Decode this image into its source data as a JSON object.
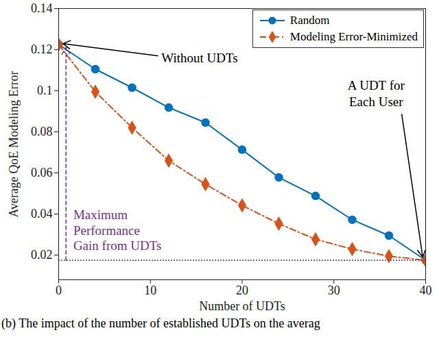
{
  "chart_data": {
    "type": "line",
    "caption": "(b) The impact of the number of established UDTs on the averag",
    "x_label": "Number of UDTs",
    "y_label": "Average QoE Modeling Error",
    "x": [
      0,
      4,
      8,
      12,
      16,
      20,
      24,
      28,
      32,
      36,
      40
    ],
    "series": [
      {
        "name": "Random",
        "color": "#0072BD",
        "marker": "circle",
        "line_style": "solid",
        "values": [
          0.1225,
          0.1105,
          0.1015,
          0.0918,
          0.0845,
          0.0713,
          0.0578,
          0.0488,
          0.0372,
          0.0295,
          0.0175
        ]
      },
      {
        "name": "Modeling Error-Minimized",
        "color": "#D95319",
        "marker": "diamond",
        "line_style": "dashdot",
        "values": [
          0.1225,
          0.0995,
          0.082,
          0.066,
          0.0545,
          0.0442,
          0.0353,
          0.0277,
          0.0229,
          0.0195,
          0.0175
        ]
      }
    ],
    "xlim": [
      0,
      40
    ],
    "xticks": [
      0,
      10,
      20,
      30,
      40
    ],
    "ylim": [
      0.008,
      0.14
    ],
    "yticks": [
      0.02,
      0.04,
      0.06,
      0.08,
      0.1,
      0.12,
      0.14
    ],
    "grid": false,
    "legend": "top-right",
    "annotations": [
      {
        "text": "Without UDTs",
        "color": "#000000"
      },
      {
        "text": "A UDT for\nEach User",
        "color": "#000000"
      },
      {
        "text": "Maximum\nPerformance\nGain from UDTs",
        "color": "#7E2F8E"
      }
    ]
  }
}
